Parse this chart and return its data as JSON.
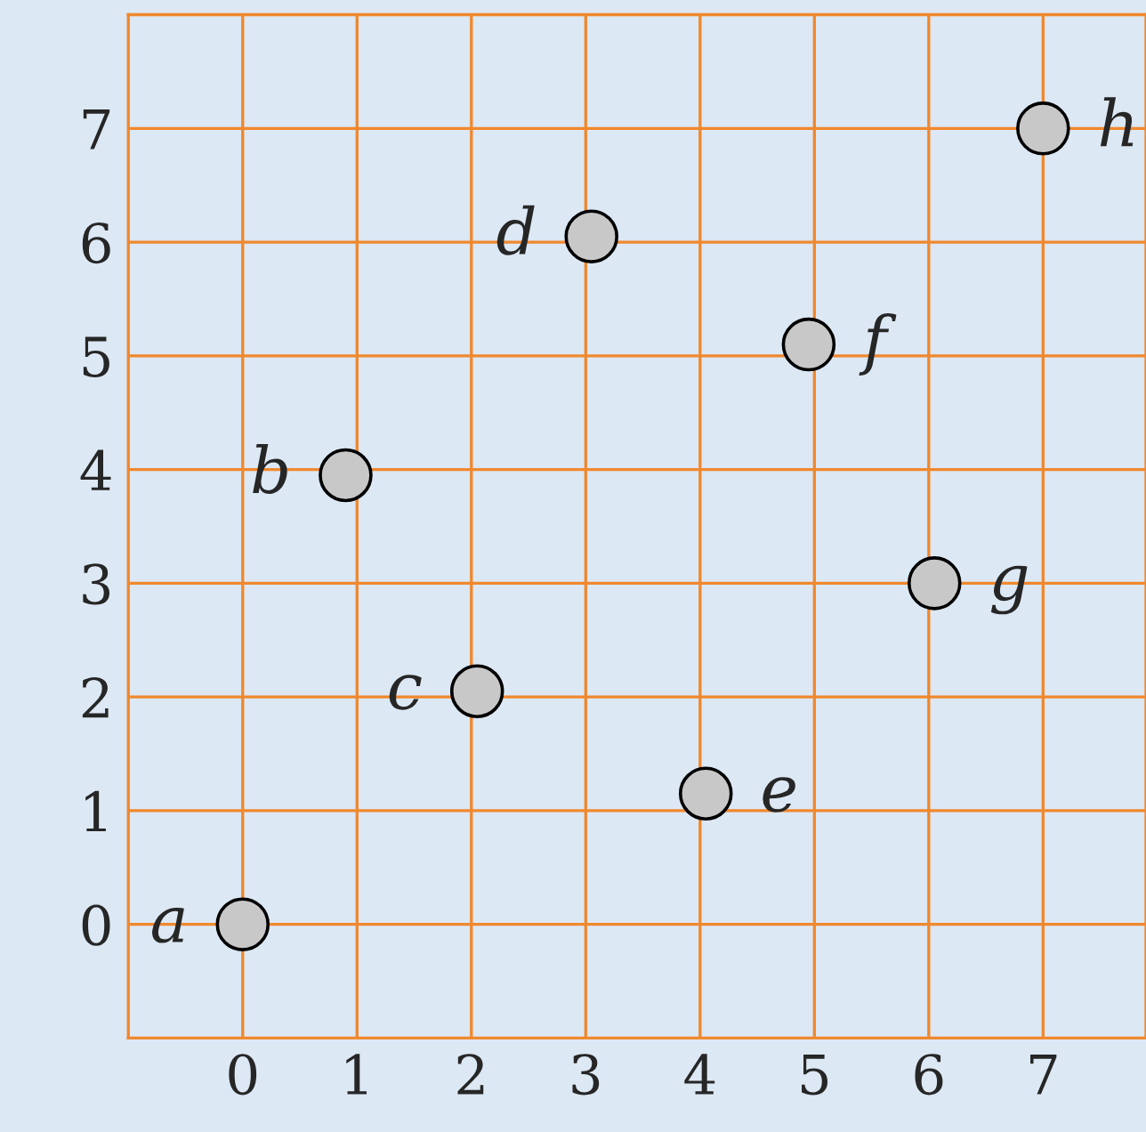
{
  "chart_data": {
    "type": "scatter",
    "x": [
      0,
      0.9,
      2.05,
      3.05,
      4.05,
      4.95,
      6.05,
      7.0
    ],
    "values": [
      0,
      3.95,
      2.05,
      6.05,
      1.15,
      5.1,
      3.0,
      7.0
    ],
    "color": "#c8c8c8",
    "marker": "circle",
    "xlim": [
      -1,
      7.9
    ],
    "ylim": [
      -1,
      8
    ],
    "xticks": [
      0,
      1,
      2,
      3,
      4,
      5,
      6,
      7
    ],
    "yticks": [
      0,
      1,
      2,
      3,
      4,
      5,
      6,
      7
    ],
    "grid": true,
    "annotations": [
      {
        "text": "a",
        "x": 0,
        "y": 0
      },
      {
        "text": "b",
        "x": 0.9,
        "y": 3.95
      },
      {
        "text": "c",
        "x": 2.05,
        "y": 2.05
      },
      {
        "text": "d",
        "x": 3.05,
        "y": 6.05
      },
      {
        "text": "e",
        "x": 4.05,
        "y": 1.15
      },
      {
        "text": "f",
        "x": 4.95,
        "y": 5.1
      },
      {
        "text": "g",
        "x": 6.05,
        "y": 3.0
      },
      {
        "text": "h",
        "x": 7.0,
        "y": 7.0
      }
    ]
  }
}
